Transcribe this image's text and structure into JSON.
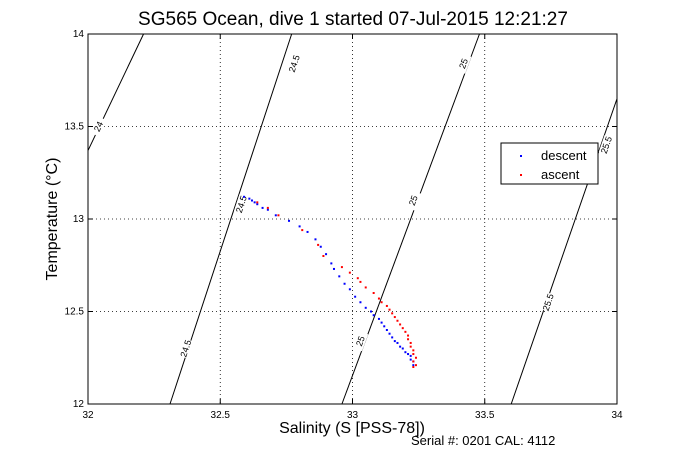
{
  "chart_data": {
    "type": "scatter",
    "title": "SG565 Ocean, dive 1 started 07-Jul-2015 12:21:27",
    "xlabel": "Salinity (S [PSS-78])",
    "ylabel": "Temperature (°C)",
    "xlim": [
      32,
      34
    ],
    "ylim": [
      12,
      14
    ],
    "xticks": [
      "32",
      "32.5",
      "33",
      "33.5",
      "34"
    ],
    "yticks": [
      "12",
      "12.5",
      "13",
      "13.5",
      "14"
    ],
    "grid": true,
    "legend_position": "right",
    "footer": "Serial #: 0201  CAL: 4112",
    "series": [
      {
        "name": "descent",
        "color": "#0000ff",
        "points": [
          [
            32.59,
            13.12
          ],
          [
            32.61,
            13.11
          ],
          [
            32.62,
            13.1
          ],
          [
            32.63,
            13.09
          ],
          [
            32.64,
            13.08
          ],
          [
            32.66,
            13.06
          ],
          [
            32.68,
            13.05
          ],
          [
            32.71,
            13.02
          ],
          [
            32.76,
            12.99
          ],
          [
            32.8,
            12.96
          ],
          [
            32.83,
            12.93
          ],
          [
            32.86,
            12.89
          ],
          [
            32.88,
            12.85
          ],
          [
            32.9,
            12.81
          ],
          [
            32.92,
            12.76
          ],
          [
            32.93,
            12.73
          ],
          [
            32.95,
            12.69
          ],
          [
            32.97,
            12.65
          ],
          [
            32.99,
            12.62
          ],
          [
            33.01,
            12.58
          ],
          [
            33.03,
            12.55
          ],
          [
            33.05,
            12.52
          ],
          [
            33.07,
            12.5
          ],
          [
            33.08,
            12.48
          ],
          [
            33.1,
            12.46
          ],
          [
            33.11,
            12.44
          ],
          [
            33.12,
            12.42
          ],
          [
            33.13,
            12.4
          ],
          [
            33.14,
            12.38
          ],
          [
            33.15,
            12.36
          ],
          [
            33.16,
            12.34
          ],
          [
            33.17,
            12.33
          ],
          [
            33.18,
            12.31
          ],
          [
            33.19,
            12.3
          ],
          [
            33.2,
            12.28
          ],
          [
            33.21,
            12.27
          ],
          [
            33.22,
            12.26
          ],
          [
            33.22,
            12.24
          ],
          [
            33.23,
            12.23
          ],
          [
            33.23,
            12.21
          ]
        ]
      },
      {
        "name": "ascent",
        "color": "#ff0000",
        "points": [
          [
            32.64,
            13.09
          ],
          [
            32.68,
            13.06
          ],
          [
            32.72,
            13.02
          ],
          [
            32.81,
            12.94
          ],
          [
            32.87,
            12.86
          ],
          [
            32.89,
            12.8
          ],
          [
            32.96,
            12.74
          ],
          [
            32.99,
            12.71
          ],
          [
            33.02,
            12.68
          ],
          [
            33.03,
            12.66
          ],
          [
            33.05,
            12.63
          ],
          [
            33.08,
            12.6
          ],
          [
            33.1,
            12.57
          ],
          [
            33.11,
            12.55
          ],
          [
            33.13,
            12.53
          ],
          [
            33.14,
            12.51
          ],
          [
            33.15,
            12.49
          ],
          [
            33.16,
            12.47
          ],
          [
            33.17,
            12.45
          ],
          [
            33.18,
            12.43
          ],
          [
            33.19,
            12.41
          ],
          [
            33.2,
            12.39
          ],
          [
            33.21,
            12.37
          ],
          [
            33.21,
            12.35
          ],
          [
            33.22,
            12.33
          ],
          [
            33.22,
            12.31
          ],
          [
            33.23,
            12.29
          ],
          [
            33.23,
            12.27
          ],
          [
            33.24,
            12.25
          ],
          [
            33.23,
            12.23
          ],
          [
            33.24,
            12.21
          ],
          [
            33.23,
            12.2
          ]
        ]
      }
    ],
    "density_contours": [
      {
        "label": "24",
        "points": [
          [
            32.0,
            13.37
          ],
          [
            32.21,
            14.0
          ]
        ],
        "labels_at": [
          [
            32.04,
            13.5
          ]
        ]
      },
      {
        "label": "24.5",
        "points": [
          [
            32.31,
            12.0
          ],
          [
            32.77,
            14.0
          ]
        ],
        "labels_at": [
          [
            32.37,
            12.3
          ],
          [
            32.58,
            13.08
          ],
          [
            32.78,
            13.84
          ]
        ]
      },
      {
        "label": "25",
        "points": [
          [
            32.96,
            12.0
          ],
          [
            33.48,
            14.0
          ]
        ],
        "labels_at": [
          [
            33.03,
            12.34
          ],
          [
            33.23,
            13.1
          ],
          [
            33.42,
            13.84
          ]
        ]
      },
      {
        "label": "25.5",
        "points": [
          [
            33.6,
            12.0
          ],
          [
            34.0,
            13.65
          ]
        ],
        "labels_at": [
          [
            33.74,
            12.55
          ],
          [
            33.96,
            13.4
          ]
        ]
      }
    ]
  }
}
